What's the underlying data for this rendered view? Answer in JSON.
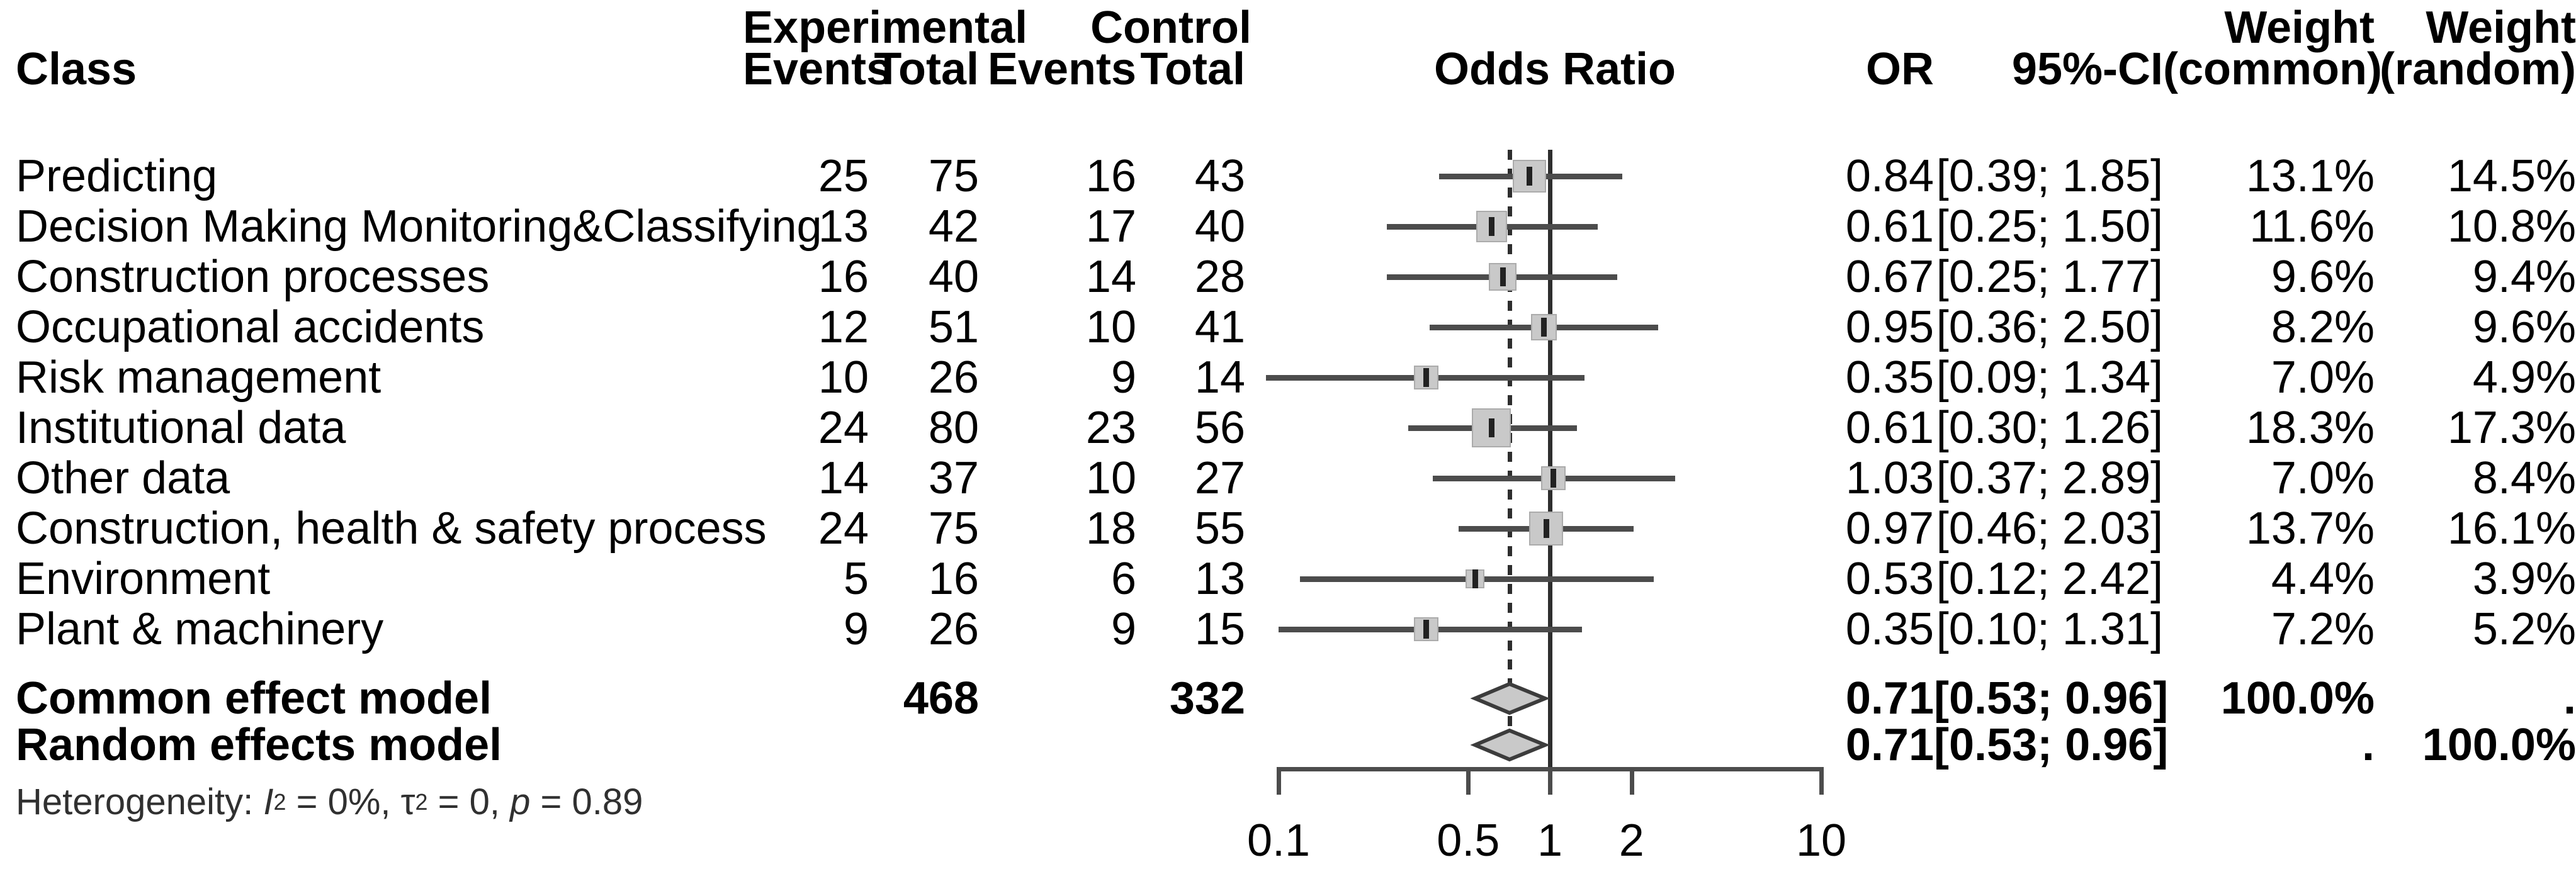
{
  "header": {
    "class_label": "Class",
    "experimental": "Experimental",
    "control": "Control",
    "events": "Events",
    "total": "Total",
    "odds_ratio": "Odds Ratio",
    "or": "OR",
    "ci": "95%-CI",
    "weight": "Weight",
    "weight_common_sub": "(common)",
    "weight_random_sub": "(random)"
  },
  "table": {
    "rows": [
      {
        "label": "Predicting",
        "exp_events": "25",
        "exp_total": "75",
        "ctrl_events": "16",
        "ctrl_total": "43",
        "or": "0.84",
        "ci": "[0.39; 1.85]",
        "weight_common": "13.1%",
        "weight_random": "14.5%"
      },
      {
        "label": "Decision Making Monitoring&Classifying",
        "exp_events": "13",
        "exp_total": "42",
        "ctrl_events": "17",
        "ctrl_total": "40",
        "or": "0.61",
        "ci": "[0.25; 1.50]",
        "weight_common": "11.6%",
        "weight_random": "10.8%"
      },
      {
        "label": "Construction processes",
        "exp_events": "16",
        "exp_total": "40",
        "ctrl_events": "14",
        "ctrl_total": "28",
        "or": "0.67",
        "ci": "[0.25; 1.77]",
        "weight_common": "9.6%",
        "weight_random": "9.4%"
      },
      {
        "label": "Occupational accidents",
        "exp_events": "12",
        "exp_total": "51",
        "ctrl_events": "10",
        "ctrl_total": "41",
        "or": "0.95",
        "ci": "[0.36; 2.50]",
        "weight_common": "8.2%",
        "weight_random": "9.6%"
      },
      {
        "label": "Risk management",
        "exp_events": "10",
        "exp_total": "26",
        "ctrl_events": "9",
        "ctrl_total": "14",
        "or": "0.35",
        "ci": "[0.09; 1.34]",
        "weight_common": "7.0%",
        "weight_random": "4.9%"
      },
      {
        "label": "Institutional data",
        "exp_events": "24",
        "exp_total": "80",
        "ctrl_events": "23",
        "ctrl_total": "56",
        "or": "0.61",
        "ci": "[0.30; 1.26]",
        "weight_common": "18.3%",
        "weight_random": "17.3%"
      },
      {
        "label": "Other data",
        "exp_events": "14",
        "exp_total": "37",
        "ctrl_events": "10",
        "ctrl_total": "27",
        "or": "1.03",
        "ci": "[0.37; 2.89]",
        "weight_common": "7.0%",
        "weight_random": "8.4%"
      },
      {
        "label": "Construction, health & safety process",
        "exp_events": "24",
        "exp_total": "75",
        "ctrl_events": "18",
        "ctrl_total": "55",
        "or": "0.97",
        "ci": "[0.46; 2.03]",
        "weight_common": "13.7%",
        "weight_random": "16.1%"
      },
      {
        "label": "Environment",
        "exp_events": "5",
        "exp_total": "16",
        "ctrl_events": "6",
        "ctrl_total": "13",
        "or": "0.53",
        "ci": "[0.12; 2.42]",
        "weight_common": "4.4%",
        "weight_random": "3.9%"
      },
      {
        "label": "Plant & machinery",
        "exp_events": "9",
        "exp_total": "26",
        "ctrl_events": "9",
        "ctrl_total": "15",
        "or": "0.35",
        "ci": "[0.10; 1.31]",
        "weight_common": "7.2%",
        "weight_random": "5.2%"
      }
    ],
    "summary": [
      {
        "label": "Common effect model",
        "exp_total": "468",
        "ctrl_total": "332",
        "or": "0.71",
        "ci": "[0.53; 0.96]",
        "weight_common": "100.0%",
        "weight_random": "."
      },
      {
        "label": "Random effects model",
        "exp_total": "",
        "ctrl_total": "",
        "or": "0.71",
        "ci": "[0.53; 0.96]",
        "weight_common": ".",
        "weight_random": "100.0%"
      }
    ]
  },
  "heterogeneity": {
    "prefix": "Heterogeneity: ",
    "i_symbol": "I",
    "i_sup": "2",
    "i_rest": " = 0%, ",
    "tau_symbol": "τ",
    "tau_sup": "2",
    "tau_rest": " = 0, ",
    "p_symbol": "p",
    "p_rest": " = 0.89"
  },
  "chart_data": {
    "type": "forest",
    "effect_measure": "Odds Ratio",
    "x_axis": {
      "scale": "log10",
      "ticks": [
        0.1,
        0.5,
        1,
        2,
        10
      ],
      "tick_labels": [
        "0.1",
        "0.5",
        "1",
        "2",
        "10"
      ],
      "range": [
        0.1,
        10
      ]
    },
    "reference_line": 1.0,
    "dashed_line_at": 0.71,
    "studies": [
      {
        "label": "Predicting",
        "exp_events": 25,
        "exp_total": 75,
        "ctrl_events": 16,
        "ctrl_total": 43,
        "or": 0.84,
        "ci_low": 0.39,
        "ci_high": 1.85,
        "weight_common_pct": 13.1,
        "weight_random_pct": 14.5
      },
      {
        "label": "Decision Making Monitoring&Classifying",
        "exp_events": 13,
        "exp_total": 42,
        "ctrl_events": 17,
        "ctrl_total": 40,
        "or": 0.61,
        "ci_low": 0.25,
        "ci_high": 1.5,
        "weight_common_pct": 11.6,
        "weight_random_pct": 10.8
      },
      {
        "label": "Construction processes",
        "exp_events": 16,
        "exp_total": 40,
        "ctrl_events": 14,
        "ctrl_total": 28,
        "or": 0.67,
        "ci_low": 0.25,
        "ci_high": 1.77,
        "weight_common_pct": 9.6,
        "weight_random_pct": 9.4
      },
      {
        "label": "Occupational accidents",
        "exp_events": 12,
        "exp_total": 51,
        "ctrl_events": 10,
        "ctrl_total": 41,
        "or": 0.95,
        "ci_low": 0.36,
        "ci_high": 2.5,
        "weight_common_pct": 8.2,
        "weight_random_pct": 9.6
      },
      {
        "label": "Risk management",
        "exp_events": 10,
        "exp_total": 26,
        "ctrl_events": 9,
        "ctrl_total": 14,
        "or": 0.35,
        "ci_low": 0.09,
        "ci_high": 1.34,
        "weight_common_pct": 7.0,
        "weight_random_pct": 4.9
      },
      {
        "label": "Institutional data",
        "exp_events": 24,
        "exp_total": 80,
        "ctrl_events": 23,
        "ctrl_total": 56,
        "or": 0.61,
        "ci_low": 0.3,
        "ci_high": 1.26,
        "weight_common_pct": 18.3,
        "weight_random_pct": 17.3
      },
      {
        "label": "Other data",
        "exp_events": 14,
        "exp_total": 37,
        "ctrl_events": 10,
        "ctrl_total": 27,
        "or": 1.03,
        "ci_low": 0.37,
        "ci_high": 2.89,
        "weight_common_pct": 7.0,
        "weight_random_pct": 8.4
      },
      {
        "label": "Construction, health & safety process",
        "exp_events": 24,
        "exp_total": 75,
        "ctrl_events": 18,
        "ctrl_total": 55,
        "or": 0.97,
        "ci_low": 0.46,
        "ci_high": 2.03,
        "weight_common_pct": 13.7,
        "weight_random_pct": 16.1
      },
      {
        "label": "Environment",
        "exp_events": 5,
        "exp_total": 16,
        "ctrl_events": 6,
        "ctrl_total": 13,
        "or": 0.53,
        "ci_low": 0.12,
        "ci_high": 2.42,
        "weight_common_pct": 4.4,
        "weight_random_pct": 3.9
      },
      {
        "label": "Plant & machinery",
        "exp_events": 9,
        "exp_total": 26,
        "ctrl_events": 9,
        "ctrl_total": 15,
        "or": 0.35,
        "ci_low": 0.1,
        "ci_high": 1.31,
        "weight_common_pct": 7.2,
        "weight_random_pct": 5.2
      }
    ],
    "summaries": [
      {
        "label": "Common effect model",
        "exp_total": 468,
        "ctrl_total": 332,
        "or": 0.71,
        "ci_low": 0.53,
        "ci_high": 0.96,
        "weight_common_pct": 100.0,
        "weight_random_pct": null
      },
      {
        "label": "Random effects model",
        "exp_total": null,
        "ctrl_total": null,
        "or": 0.71,
        "ci_low": 0.53,
        "ci_high": 0.96,
        "weight_common_pct": null,
        "weight_random_pct": 100.0
      }
    ],
    "heterogeneity": {
      "I2": "0%",
      "tau2": "0",
      "p": "0.89"
    }
  }
}
